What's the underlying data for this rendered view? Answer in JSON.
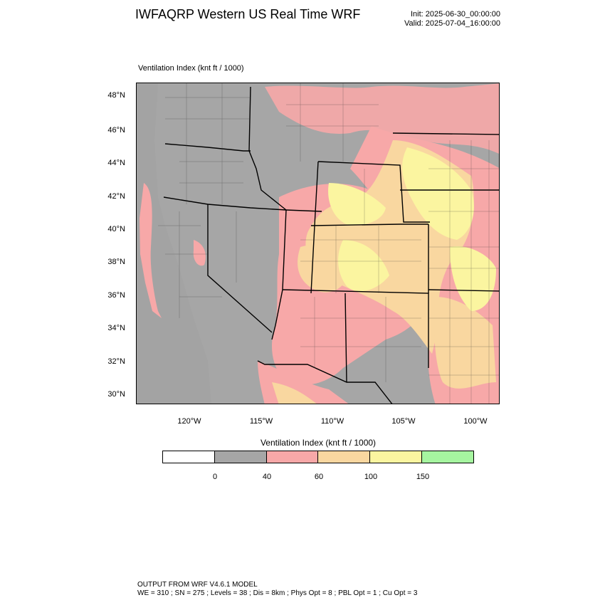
{
  "header": {
    "title": "IWFAQRP Western US Real Time WRF",
    "init": "Init: 2025-06-30_00:00:00",
    "valid": "Valid: 2025-07-04_16:00:00"
  },
  "map": {
    "field_label": "Ventilation Index   (knt ft / 1000)",
    "lat_labels": [
      "48°N",
      "46°N",
      "44°N",
      "42°N",
      "40°N",
      "38°N",
      "36°N",
      "34°N",
      "32°N",
      "30°N"
    ],
    "lon_labels": [
      "120°W",
      "115°W",
      "110°W",
      "105°W",
      "100°W"
    ],
    "colors": {
      "background": "#a6a6a6",
      "low": "#f7a8a8",
      "mid": "#f9d7a0",
      "high": "#fbf5a0",
      "boundaries": "#000000"
    }
  },
  "legend": {
    "title": "Ventilation Index   (knt ft / 1000)",
    "segments": [
      {
        "color": "#ffffff"
      },
      {
        "color": "#a6a6a6"
      },
      {
        "color": "#f7a8a8"
      },
      {
        "color": "#f9d7a0"
      },
      {
        "color": "#fbf5a0"
      },
      {
        "color": "#a6f5a0"
      }
    ],
    "ticks": [
      "0",
      "40",
      "60",
      "100",
      "150"
    ]
  },
  "footer": {
    "line1": "OUTPUT FROM WRF V4.6.1 MODEL",
    "line2": "WE = 310 ; SN = 275 ; Levels = 38 ; Dis = 8km ; Phys Opt = 8 ; PBL Opt = 1 ; Cu Opt = 3"
  }
}
